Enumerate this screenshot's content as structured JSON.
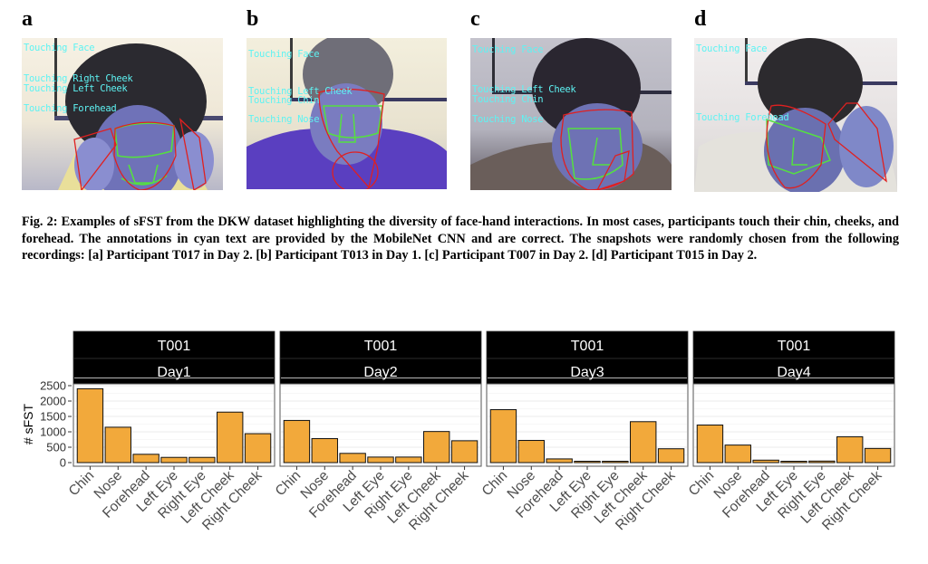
{
  "panels": [
    {
      "label": "a",
      "annotations": [
        "Touching Face",
        "Touching Right Cheek",
        "Touching Left Cheek",
        "Touching Forehead"
      ]
    },
    {
      "label": "b",
      "annotations": [
        "Touching Face",
        "Touching Left Cheek",
        "Touching Chin",
        "Touching Nose"
      ]
    },
    {
      "label": "c",
      "annotations": [
        "Touching Face",
        "Touching Left Cheek",
        "Touching Chin",
        "Touching Nose"
      ]
    },
    {
      "label": "d",
      "annotations": [
        "Touching Face",
        "Touching Forehead"
      ]
    }
  ],
  "caption": "Fig. 2: Examples of sFST from the DKW dataset highlighting the diversity of face-hand interactions. In most cases, participants touch their chin, cheeks, and forehead. The annotations in cyan text are provided by the MobileNet CNN and are correct. The snapshots were randomly chosen from the following recordings: [a] Participant T017 in Day 2. [b] Participant T013 in Day 1. [c] Participant T007 in Day 2. [d] Participant T015 in Day 2.",
  "colors": {
    "bar": "#f2a93b",
    "strip": "#000000",
    "annotation": "#5ef3f3",
    "face_mesh": "#55e040",
    "hand_outline": "#e02020"
  },
  "chart_data": {
    "type": "bar",
    "ylabel": "# sFST",
    "xlabel": "",
    "ylim": [
      0,
      2500
    ],
    "yticks": [
      0,
      500,
      1000,
      1500,
      2000,
      2500
    ],
    "grid": true,
    "categories": [
      "Chin",
      "Nose",
      "Forehead",
      "Left Eye",
      "Right Eye",
      "Left Cheek",
      "Right Cheek"
    ],
    "facets": [
      {
        "participant": "T001",
        "day": "Day1",
        "values": [
          2400,
          1150,
          270,
          170,
          170,
          1640,
          940
        ]
      },
      {
        "participant": "T001",
        "day": "Day2",
        "values": [
          1370,
          780,
          300,
          180,
          180,
          1010,
          710
        ]
      },
      {
        "participant": "T001",
        "day": "Day3",
        "values": [
          1720,
          720,
          120,
          30,
          30,
          1330,
          450
        ]
      },
      {
        "participant": "T001",
        "day": "Day4",
        "values": [
          1220,
          570,
          80,
          30,
          50,
          840,
          460
        ]
      }
    ]
  }
}
